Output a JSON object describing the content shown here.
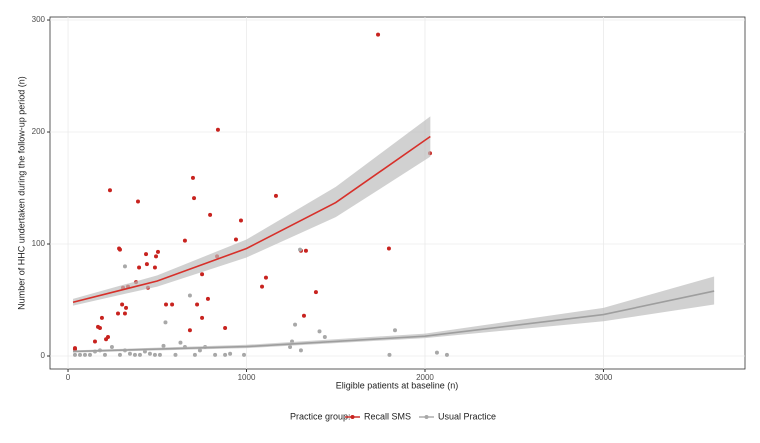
{
  "chart_data": {
    "type": "scatter",
    "x_label": "Eligible patients at baseline (n)",
    "y_label": "Number of HHC undertaken during the follow-up period (n)",
    "legend_title": "Practice group:",
    "xlim": [
      -101,
      3793
    ],
    "ylim": [
      -11.6,
      302.7
    ],
    "xticks": [
      0,
      1000,
      2000,
      3000
    ],
    "yticks": [
      0,
      100,
      200,
      300
    ],
    "grid": true,
    "series": [
      {
        "name": "Recall SMS",
        "color": "#c8231f",
        "x": [
          39,
          39,
          151,
          168,
          179,
          190,
          213,
          224,
          235,
          280,
          286,
          291,
          303,
          308,
          319,
          325,
          336,
          381,
          392,
          398,
          437,
          442,
          448,
          487,
          493,
          504,
          549,
          583,
          655,
          683,
          700,
          706,
          723,
          751,
          751,
          784,
          796,
          835,
          840,
          880,
          941,
          969,
          1087,
          1109,
          1165,
          1305,
          1333,
          1322,
          1389,
          1737,
          1798,
          2028
        ],
        "values": [
          7,
          6,
          13,
          26,
          25,
          34,
          15,
          17,
          148,
          38,
          96,
          95,
          46,
          61,
          38,
          43,
          62,
          66,
          138,
          79,
          91,
          82,
          61,
          79,
          89,
          93,
          46,
          46,
          103,
          23,
          159,
          141,
          46,
          73,
          34,
          51,
          126,
          89,
          202,
          25,
          104,
          121,
          62,
          70,
          143,
          94,
          94,
          36,
          57,
          287,
          96,
          181
        ]
      },
      {
        "name": "Usual Practice",
        "color": "#a8a8a8",
        "x": [
          39,
          67,
          95,
          123,
          151,
          179,
          207,
          246,
          291,
          319,
          319,
          347,
          375,
          403,
          431,
          459,
          487,
          515,
          535,
          546,
          602,
          630,
          655,
          683,
          711,
          739,
          768,
          824,
          880,
          908,
          986,
          1244,
          1255,
          1272,
          1300,
          1305,
          1409,
          1439,
          1801,
          1832,
          2067,
          2123
        ],
        "values": [
          1,
          1,
          1,
          1,
          4,
          5,
          1,
          8,
          1,
          80,
          5,
          2,
          1,
          1,
          4,
          2,
          1,
          1,
          9,
          30,
          1,
          12,
          8,
          54,
          1,
          5,
          8,
          1,
          1,
          2,
          1,
          8,
          13,
          28,
          95,
          5,
          22,
          17,
          1,
          23,
          3,
          1
        ]
      }
    ],
    "fits": [
      {
        "color": "#d7302a",
        "x": [
          28,
          500,
          1000,
          1500,
          2030
        ],
        "values": [
          48,
          67,
          96,
          137,
          196
        ],
        "lower": [
          45,
          62,
          88,
          124,
          178
        ],
        "upper": [
          51,
          72,
          104,
          151,
          214
        ]
      },
      {
        "color": "#9e9e9e",
        "x": [
          28,
          1000,
          2000,
          3000,
          3620
        ],
        "values": [
          4.1,
          8.4,
          17.7,
          37,
          58
        ],
        "lower": [
          3,
          7,
          16,
          31,
          46
        ],
        "upper": [
          5,
          10,
          20,
          43,
          71
        ]
      }
    ]
  }
}
